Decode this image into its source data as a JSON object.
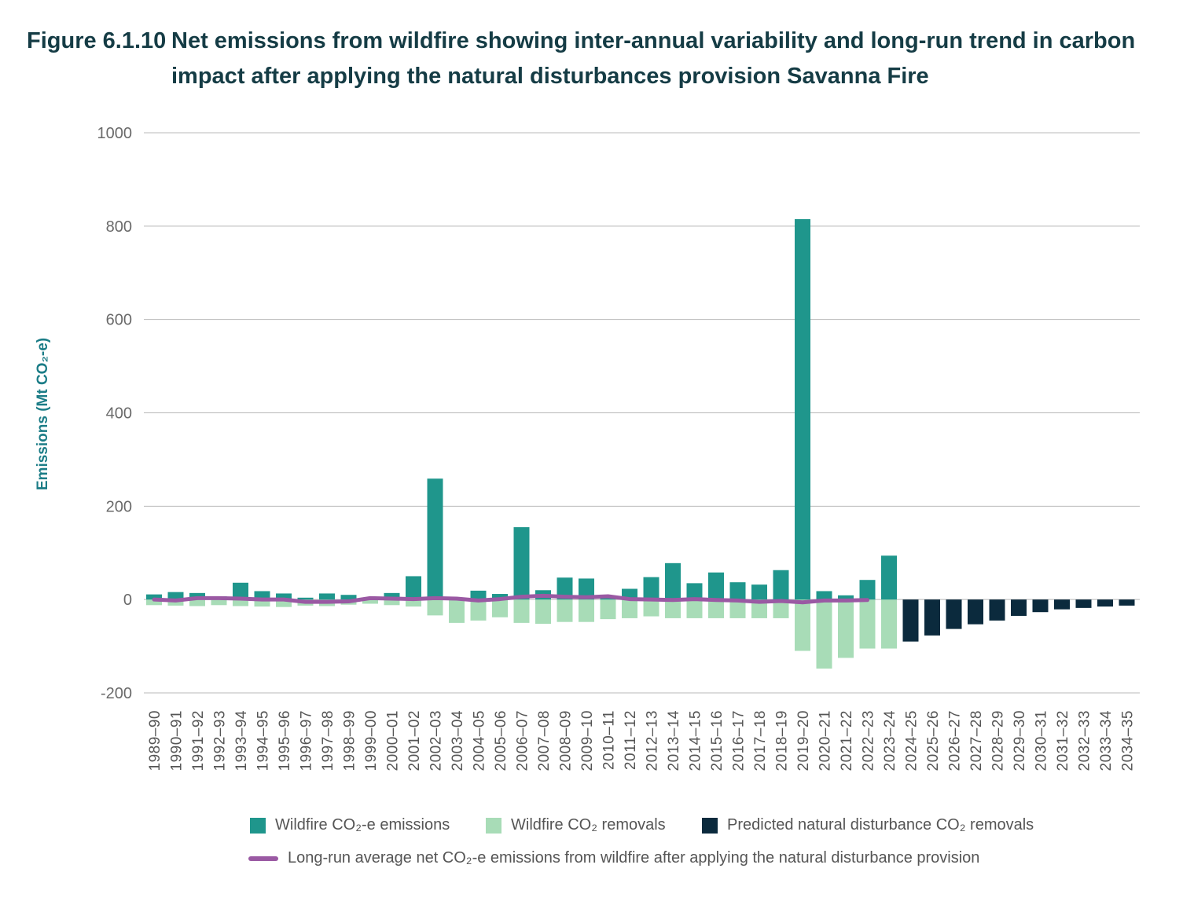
{
  "figure": {
    "number": "Figure 6.1.10",
    "title": "Net emissions from wildfire showing inter-annual variability and long-run trend in carbon impact after applying the natural disturbances provision Savanna Fire"
  },
  "colors": {
    "emissions": "#1f968c",
    "removals": "#a8dcb7",
    "predicted": "#0b2a3d",
    "average": "#9a59a3",
    "grid": "#b8b8b8",
    "title": "#153c45",
    "ylabel": "#1c7d87"
  },
  "chart_data": {
    "type": "bar",
    "title": "Net emissions from wildfire showing inter-annual variability and long-run trend in carbon impact after applying the natural disturbances provision Savanna Fire",
    "ylabel": "Emissions (Mt CO₂-e)",
    "xlabel": "",
    "ylim": [
      -200,
      1000
    ],
    "yticks": [
      "1000",
      "800",
      "600",
      "400",
      "200",
      "0",
      "-200"
    ],
    "ytick_values": [
      1000,
      800,
      600,
      400,
      200,
      0,
      -200
    ],
    "grid": true,
    "legend_position": "bottom",
    "stacked": true,
    "categories": [
      "1989–90",
      "1990–91",
      "1991–92",
      "1992–93",
      "1993–94",
      "1994–95",
      "1995–96",
      "1996–97",
      "1997–98",
      "1998–99",
      "1999–00",
      "2000–01",
      "2001–02",
      "2002–03",
      "2003–04",
      "2004–05",
      "2005–06",
      "2006–07",
      "2007–08",
      "2008–09",
      "2009–10",
      "2010–11",
      "2011–12",
      "2012–13",
      "2013–14",
      "2014–15",
      "2015–16",
      "2016–17",
      "2017–18",
      "2018–19",
      "2019–20",
      "2020–21",
      "2021–22",
      "2022–23",
      "2023–24",
      "2024–25",
      "2025–26",
      "2026–27",
      "2027–28",
      "2028–29",
      "2029–30",
      "2030–31",
      "2031–32",
      "2032–33",
      "2033–34",
      "2034–35"
    ],
    "series": [
      {
        "name": "Wildfire CO₂-e emissions",
        "kind": "bar",
        "values": [
          11,
          16,
          14,
          7,
          36,
          18,
          13,
          4,
          13,
          10,
          4,
          14,
          50,
          259,
          3,
          19,
          12,
          155,
          20,
          47,
          45,
          8,
          23,
          48,
          78,
          35,
          58,
          37,
          32,
          63,
          815,
          18,
          9,
          42,
          94,
          null,
          null,
          null,
          null,
          null,
          null,
          null,
          null,
          null,
          null,
          null
        ]
      },
      {
        "name": "Wildfire CO₂ removals",
        "kind": "bar",
        "values": [
          -12,
          -13,
          -14,
          -12,
          -14,
          -15,
          -16,
          -13,
          -14,
          -11,
          -9,
          -12,
          -15,
          -34,
          -50,
          -45,
          -38,
          -50,
          -52,
          -48,
          -48,
          -42,
          -40,
          -36,
          -40,
          -40,
          -40,
          -40,
          -40,
          -40,
          -110,
          -148,
          -125,
          -105,
          -105,
          null,
          null,
          null,
          null,
          null,
          null,
          null,
          null,
          null,
          null,
          null
        ]
      },
      {
        "name": "Predicted natural disturbance CO₂ removals",
        "kind": "bar",
        "values": [
          null,
          null,
          null,
          null,
          null,
          null,
          null,
          null,
          null,
          null,
          null,
          null,
          null,
          null,
          null,
          null,
          null,
          null,
          null,
          null,
          null,
          null,
          null,
          null,
          null,
          null,
          null,
          null,
          null,
          null,
          null,
          null,
          null,
          null,
          null,
          -90,
          -77,
          -63,
          -53,
          -45,
          -35,
          -27,
          -21,
          -18,
          -15,
          -13
        ]
      },
      {
        "name": "Long-run average net CO₂-e emissions from wildfire after applying the natural disturbance provision",
        "kind": "line",
        "values": [
          0,
          -2,
          3,
          3,
          2,
          0,
          0,
          -5,
          -5,
          -4,
          3,
          2,
          1,
          3,
          2,
          -2,
          1,
          6,
          8,
          6,
          5,
          7,
          1,
          0,
          -1,
          1,
          -1,
          -2,
          -5,
          -3,
          -6,
          -2,
          -2,
          -1,
          null,
          null,
          null,
          null,
          null,
          null,
          null,
          null,
          null,
          null,
          null,
          null
        ]
      }
    ]
  }
}
